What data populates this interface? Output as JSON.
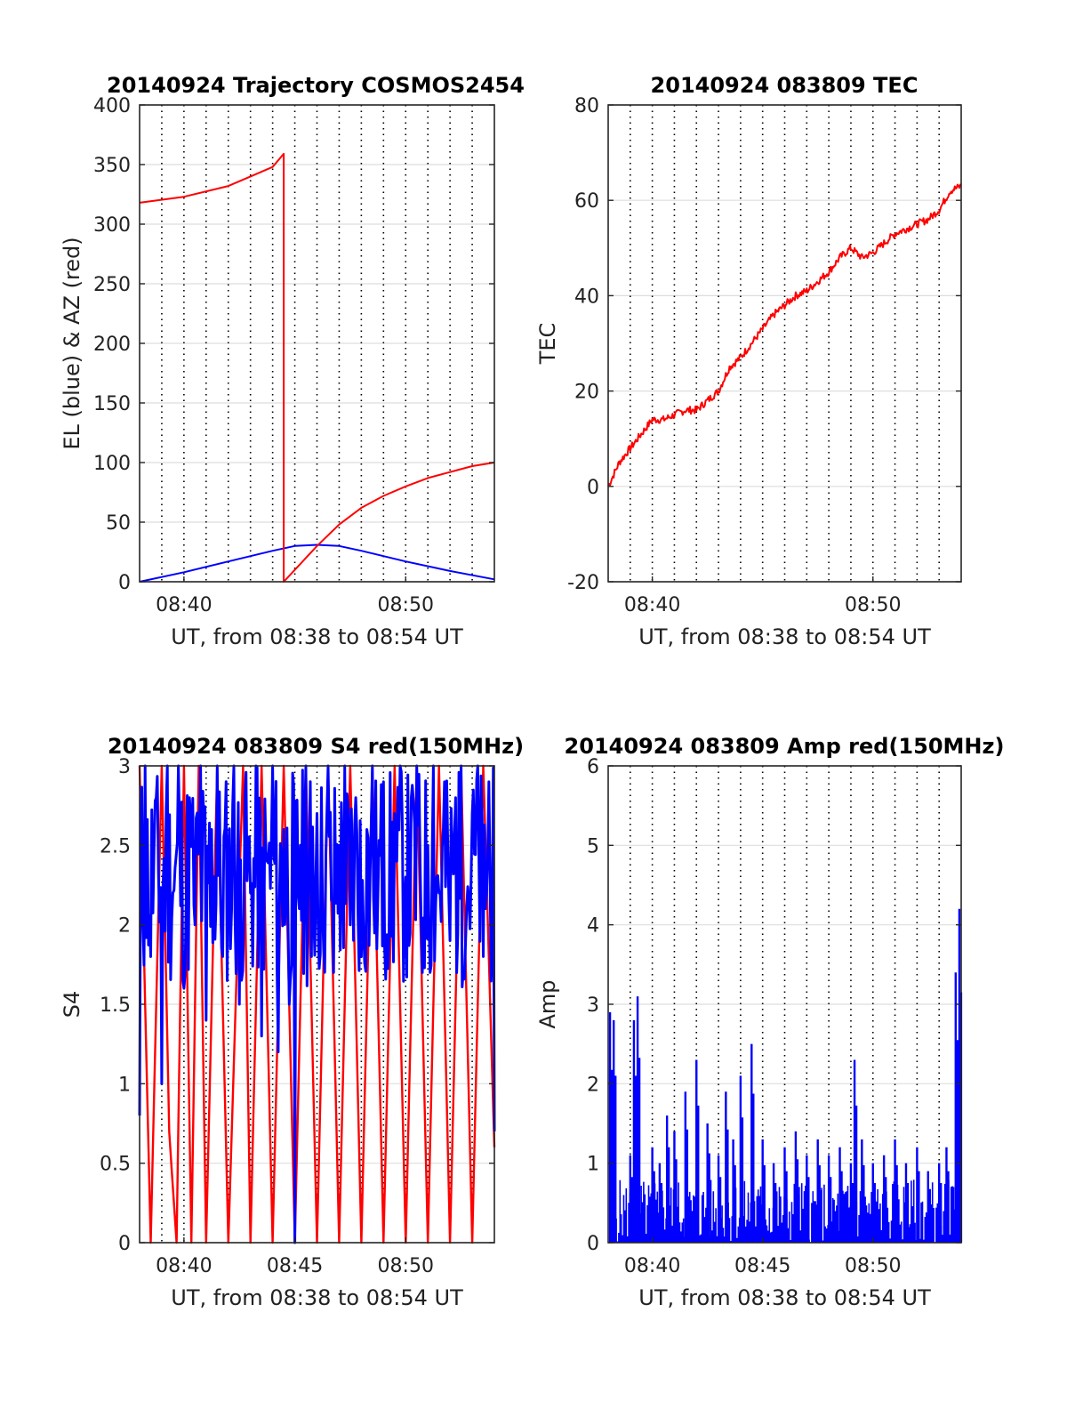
{
  "chart_data": [
    {
      "type": "line",
      "title": "20140924 Trajectory COSMOS2454",
      "xlabel": "UT, from 08:38 to 08:54 UT",
      "ylabel": "EL (blue) & AZ (red)",
      "xlim": [
        "08:38",
        "08:54"
      ],
      "ylim": [
        0,
        400
      ],
      "yticks": [
        0,
        50,
        100,
        150,
        200,
        250,
        300,
        350,
        400
      ],
      "xtick_labels": [
        {
          "t": "08:40",
          "label": "08:40"
        },
        {
          "t": "08:50",
          "label": "08:50"
        }
      ],
      "grid": true,
      "series": [
        {
          "color": "#0000ff",
          "x": [
            "08:38",
            "08:40",
            "08:42",
            "08:44",
            "08:45",
            "08:46",
            "08:47",
            "08:48",
            "08:50",
            "08:52",
            "08:54"
          ],
          "y": [
            0,
            8,
            17,
            26,
            30,
            31,
            30,
            26,
            17,
            9,
            2
          ]
        },
        {
          "color": "#ff0000",
          "x": [
            "08:38",
            "08:40",
            "08:42",
            "08:43",
            "08:44",
            "08:44:30",
            "08:44:30",
            "08:45",
            "08:46",
            "08:47",
            "08:48",
            "08:49",
            "08:50",
            "08:51",
            "08:52",
            "08:53",
            "08:54"
          ],
          "y": [
            318,
            323,
            332,
            340,
            348,
            359,
            0,
            10,
            30,
            48,
            62,
            72,
            80,
            87,
            92,
            97,
            100
          ]
        }
      ]
    },
    {
      "type": "line",
      "title": "20140924 083809 TEC",
      "xlabel": "UT, from 08:38 to 08:54 UT",
      "ylabel": "TEC",
      "xlim": [
        "08:38",
        "08:54"
      ],
      "ylim": [
        -20,
        80
      ],
      "yticks": [
        -20,
        0,
        20,
        40,
        60,
        80
      ],
      "xtick_labels": [
        {
          "t": "08:40",
          "label": "08:40"
        },
        {
          "t": "08:50",
          "label": "08:50"
        }
      ],
      "grid": true,
      "series": [
        {
          "color": "#ff0000",
          "x": [
            "08:38",
            "08:38:30",
            "08:39",
            "08:39:30",
            "08:40",
            "08:40:30",
            "08:41",
            "08:41:30",
            "08:42",
            "08:42:30",
            "08:43",
            "08:43:30",
            "08:44",
            "08:44:30",
            "08:45",
            "08:45:30",
            "08:46",
            "08:46:30",
            "08:47",
            "08:47:30",
            "08:48",
            "08:48:30",
            "08:49",
            "08:49:30",
            "08:50",
            "08:50:30",
            "08:51",
            "08:51:30",
            "08:52",
            "08:52:30",
            "08:53",
            "08:53:30",
            "08:54"
          ],
          "y": [
            0,
            5,
            8,
            11,
            14,
            14,
            15,
            16,
            16,
            18,
            20,
            25,
            27,
            30,
            33,
            36,
            38,
            40,
            41,
            43,
            45,
            48,
            50,
            48,
            49,
            51,
            53,
            54,
            55,
            56,
            58,
            62,
            63
          ]
        }
      ]
    },
    {
      "type": "line",
      "title": "20140924 083809 S4 red(150MHz)",
      "xlabel": "UT, from 08:38 to 08:54 UT",
      "ylabel": "S4",
      "xlim": [
        "08:38",
        "08:54"
      ],
      "ylim": [
        0,
        3
      ],
      "yticks": [
        0,
        0.5,
        1,
        1.5,
        2,
        2.5,
        3
      ],
      "xtick_labels": [
        {
          "t": "08:40",
          "label": "08:40"
        },
        {
          "t": "08:45",
          "label": "08:45"
        },
        {
          "t": "08:50",
          "label": "08:50"
        }
      ],
      "grid": true,
      "series": [
        {
          "color": "#ff0000",
          "x": [
            "08:38",
            "08:38:30",
            "08:39",
            "08:39:20",
            "08:39:40",
            "08:40",
            "08:40:20",
            "08:40:40",
            "08:41",
            "08:41:30",
            "08:42",
            "08:42:40",
            "08:43",
            "08:43:30",
            "08:44",
            "08:44:30",
            "08:45",
            "08:45:30",
            "08:46",
            "08:46:30",
            "08:47",
            "08:47:30",
            "08:48",
            "08:48:30",
            "08:49",
            "08:49:30",
            "08:50",
            "08:50:30",
            "08:51",
            "08:51:30",
            "08:52",
            "08:52:30",
            "08:53",
            "08:53:30",
            "08:54"
          ],
          "y": [
            3,
            0,
            3,
            0.7,
            0,
            3,
            0,
            3,
            0,
            3,
            0,
            3,
            0,
            3,
            0,
            3,
            0,
            3,
            0,
            3,
            0,
            3,
            0,
            3,
            0,
            3,
            0,
            3,
            0,
            3,
            0,
            3,
            0,
            3,
            0.6
          ]
        },
        {
          "color": "#0000ff",
          "x": [
            "08:38",
            "08:38:15",
            "08:38:30",
            "08:38:45",
            "08:39",
            "08:39:15",
            "08:39:30",
            "08:39:45",
            "08:40",
            "08:40:15",
            "08:40:30",
            "08:40:45",
            "08:41",
            "08:41:15",
            "08:41:30",
            "08:41:45",
            "08:42",
            "08:42:15",
            "08:42:30",
            "08:42:45",
            "08:43",
            "08:43:15",
            "08:43:30",
            "08:43:45",
            "08:44",
            "08:44:15",
            "08:44:30",
            "08:44:45",
            "08:45",
            "08:45:15",
            "08:45:30",
            "08:45:45",
            "08:46",
            "08:46:15",
            "08:46:30",
            "08:46:45",
            "08:47",
            "08:47:15",
            "08:47:30",
            "08:47:45",
            "08:48",
            "08:48:15",
            "08:48:30",
            "08:48:45",
            "08:49",
            "08:49:15",
            "08:49:30",
            "08:49:45",
            "08:50",
            "08:50:15",
            "08:50:30",
            "08:50:45",
            "08:51",
            "08:51:15",
            "08:51:30",
            "08:51:45",
            "08:52",
            "08:52:15",
            "08:52:30",
            "08:52:45",
            "08:53",
            "08:53:15",
            "08:53:30",
            "08:53:45",
            "08:54"
          ],
          "y": [
            0.8,
            3,
            1.8,
            2.8,
            1,
            3,
            2.2,
            3,
            1.6,
            2.8,
            2,
            3,
            1.4,
            2.6,
            3,
            1.8,
            2.4,
            3,
            1.5,
            2.8,
            2.2,
            3,
            1.3,
            2.4,
            3,
            1.2,
            2.6,
            1.5,
            0,
            2.5,
            3,
            1.8,
            2.7,
            2.1,
            3,
            1.7,
            2.5,
            3,
            2,
            2.8,
            1.8,
            2.6,
            3,
            2.2,
            2.9,
            1.9,
            2.7,
            3,
            2.3,
            2.8,
            3,
            1.7,
            2.5,
            3,
            2.2,
            2.9,
            1.9,
            2.8,
            3,
            2.1,
            2.7,
            3,
            1.8,
            2.9,
            0.7
          ]
        }
      ]
    },
    {
      "type": "area",
      "title": "20140924 083809 Amp red(150MHz)",
      "xlabel": "UT, from 08:38 to 08:54 UT",
      "ylabel": "Amp",
      "xlim": [
        "08:38",
        "08:54"
      ],
      "ylim": [
        0,
        6
      ],
      "yticks": [
        0,
        1,
        2,
        3,
        4,
        5,
        6
      ],
      "xtick_labels": [
        {
          "t": "08:40",
          "label": "08:40"
        },
        {
          "t": "08:45",
          "label": "08:45"
        },
        {
          "t": "08:50",
          "label": "08:50"
        }
      ],
      "grid": true,
      "series": [
        {
          "color": "#0000ff",
          "baseline_band": [
            0,
            0.8
          ],
          "x": [
            "08:38:05",
            "08:38:15",
            "08:39",
            "08:39:10",
            "08:39:20",
            "08:40",
            "08:40:20",
            "08:40:40",
            "08:41",
            "08:41:30",
            "08:42",
            "08:42:30",
            "08:43",
            "08:43:20",
            "08:43:40",
            "08:44",
            "08:44:30",
            "08:45",
            "08:45:30",
            "08:46",
            "08:46:30",
            "08:47",
            "08:47:30",
            "08:48",
            "08:48:30",
            "08:49",
            "08:49:10",
            "08:49:30",
            "08:50",
            "08:50:30",
            "08:51",
            "08:51:30",
            "08:52",
            "08:52:30",
            "08:53",
            "08:53:20",
            "08:53:45",
            "08:53:55"
          ],
          "y": [
            2.9,
            2.8,
            1.1,
            2.8,
            3.1,
            1.2,
            1.0,
            1.6,
            1.4,
            1.9,
            2.3,
            1.5,
            1.1,
            1.9,
            1.3,
            2.1,
            2.5,
            1.3,
            1.0,
            1.2,
            1.4,
            1.1,
            1.3,
            1.1,
            1.2,
            1.0,
            2.3,
            1.3,
            1.0,
            1.1,
            1.3,
            1.0,
            1.2,
            0.9,
            1.0,
            1.2,
            3.4,
            4.2
          ]
        }
      ]
    }
  ]
}
